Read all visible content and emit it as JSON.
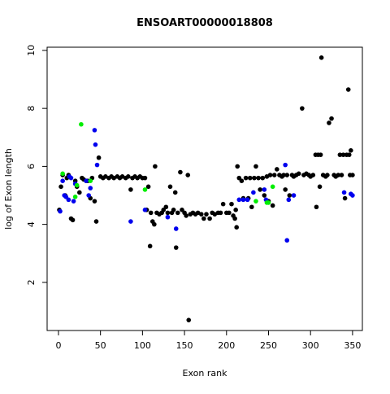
{
  "chart_data": {
    "type": "scatter",
    "title": "ENSOART00000018808",
    "x_label": "Exon rank",
    "y_label": "log of Exon length",
    "xlim": [
      -13.5,
      361.7
    ],
    "ylim": [
      0.34,
      10.11
    ],
    "xticks": [
      0,
      50,
      100,
      150,
      200,
      250,
      300,
      350
    ],
    "yticks": [
      2,
      4,
      6,
      8,
      10
    ],
    "series": [
      {
        "color": "#000000",
        "x": [
          1,
          3,
          5,
          8,
          10,
          12,
          15,
          17,
          20,
          22,
          25,
          28,
          30,
          33,
          35,
          38,
          40,
          43,
          45,
          48,
          50,
          53,
          56,
          60,
          63,
          66,
          70,
          73,
          76,
          80,
          83,
          86,
          88,
          91,
          94,
          97,
          100,
          103,
          105,
          107,
          109,
          110,
          112,
          114,
          115,
          117,
          120,
          123,
          125,
          128,
          130,
          133,
          135,
          137,
          139,
          140,
          142,
          145,
          147,
          150,
          152,
          154,
          155,
          157,
          160,
          163,
          166,
          170,
          173,
          176,
          180,
          183,
          186,
          190,
          193,
          196,
          200,
          203,
          206,
          208,
          210,
          211,
          212,
          213,
          215,
          218,
          220,
          223,
          226,
          228,
          230,
          233,
          235,
          238,
          240,
          243,
          245,
          248,
          250,
          252,
          255,
          257,
          260,
          263,
          266,
          268,
          270,
          272,
          275,
          278,
          280,
          283,
          286,
          290,
          292,
          295,
          298,
          300,
          303,
          306,
          307,
          309,
          311,
          312,
          313,
          315,
          318,
          320,
          322,
          325,
          328,
          330,
          333,
          335,
          337,
          339,
          341,
          343,
          345,
          346,
          347,
          348,
          350
        ],
        "values": [
          4.5,
          5.3,
          5.7,
          5.0,
          5.6,
          5.7,
          4.2,
          4.15,
          5.5,
          5.3,
          5.1,
          5.6,
          5.55,
          5.5,
          5.5,
          4.9,
          5.6,
          4.8,
          4.1,
          6.3,
          5.65,
          5.6,
          5.65,
          5.6,
          5.65,
          5.6,
          5.65,
          5.6,
          5.65,
          5.6,
          5.65,
          5.2,
          5.6,
          5.65,
          5.6,
          5.65,
          5.6,
          5.6,
          4.5,
          5.3,
          3.25,
          4.4,
          4.1,
          4.0,
          6.0,
          4.4,
          4.35,
          4.4,
          4.5,
          4.6,
          4.4,
          5.3,
          4.4,
          4.5,
          5.1,
          3.2,
          4.4,
          5.8,
          4.5,
          4.4,
          4.3,
          5.7,
          0.7,
          4.35,
          4.4,
          4.35,
          4.4,
          4.35,
          4.2,
          4.35,
          4.2,
          4.4,
          4.35,
          4.4,
          4.4,
          4.7,
          4.4,
          4.4,
          4.7,
          4.3,
          4.2,
          4.5,
          3.9,
          6.0,
          5.6,
          5.5,
          4.9,
          5.6,
          4.9,
          5.6,
          4.6,
          5.6,
          6.0,
          5.6,
          5.2,
          5.6,
          5.0,
          5.65,
          4.8,
          5.7,
          4.65,
          5.7,
          5.9,
          5.7,
          5.65,
          5.7,
          5.2,
          5.7,
          5.0,
          5.7,
          5.65,
          5.7,
          5.75,
          8.0,
          5.7,
          5.75,
          5.7,
          5.65,
          5.7,
          6.4,
          4.6,
          6.4,
          5.3,
          6.4,
          9.75,
          5.7,
          5.65,
          5.7,
          7.5,
          7.65,
          5.7,
          5.65,
          5.7,
          6.4,
          5.7,
          6.4,
          4.9,
          6.4,
          8.65,
          6.4,
          5.7,
          6.55,
          5.7
        ]
      },
      {
        "color": "#0000ee",
        "x": [
          2,
          5,
          7,
          9,
          12,
          13,
          15,
          18,
          20,
          33,
          36,
          38,
          43,
          44,
          46,
          86,
          103,
          130,
          140,
          215,
          220,
          225,
          232,
          245,
          247,
          270,
          272,
          274,
          280,
          340,
          348,
          350
        ],
        "values": [
          4.45,
          5.5,
          5.0,
          4.95,
          4.85,
          5.65,
          5.6,
          4.8,
          5.4,
          5.5,
          5.0,
          5.25,
          7.25,
          6.75,
          6.05,
          4.1,
          4.5,
          4.25,
          3.85,
          4.85,
          4.85,
          4.85,
          5.1,
          5.2,
          4.85,
          6.05,
          3.45,
          4.85,
          5.0,
          5.1,
          5.05,
          5.0
        ]
      },
      {
        "color": "#00ee00",
        "x": [
          5,
          20,
          22,
          27,
          38,
          103,
          235,
          248,
          250,
          255
        ],
        "values": [
          5.75,
          4.95,
          5.35,
          7.45,
          5.5,
          5.2,
          4.8,
          4.75,
          4.75,
          5.3
        ]
      }
    ]
  }
}
